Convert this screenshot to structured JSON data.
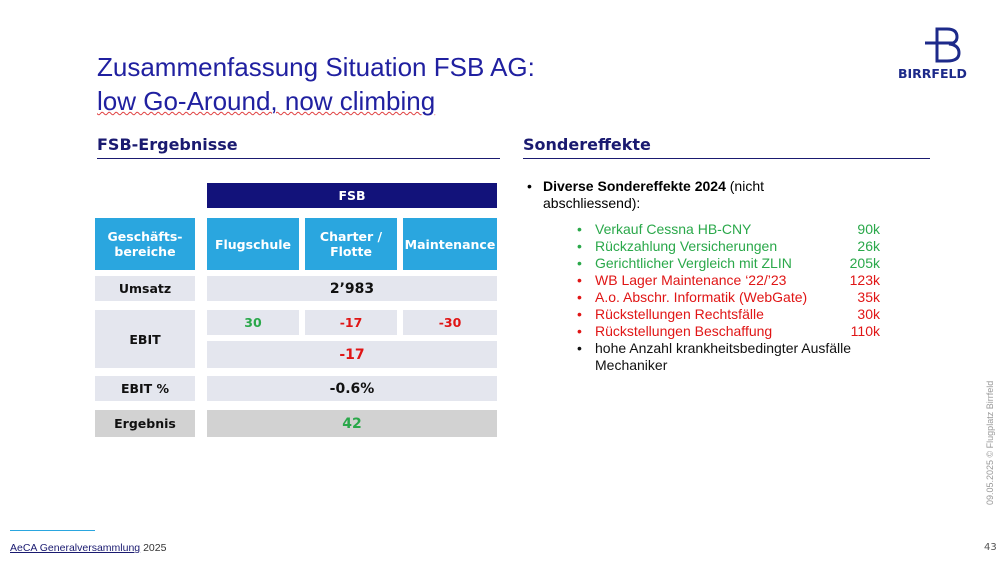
{
  "header": {
    "title_line1": "Zusammenfassung Situation FSB AG:",
    "title_line2": "low Go-Around, now climbing",
    "logo": "BIRRFELD"
  },
  "left": {
    "heading": "FSB-Ergebnisse",
    "table": {
      "group_header": "FSB",
      "corner": "Geschäfts-bereiche",
      "columns": [
        "Flugschule",
        "Charter / Flotte",
        "Maintenance"
      ],
      "umsatz": {
        "label": "Umsatz",
        "total": "2’983"
      },
      "ebit": {
        "label": "EBIT",
        "values": [
          "30",
          "-17",
          "-30"
        ],
        "total": "-17"
      },
      "ebit_pct": {
        "label": "EBIT %",
        "total": "-0.6%"
      },
      "ergebnis": {
        "label": "Ergebnis",
        "total": "42"
      }
    }
  },
  "right": {
    "heading": "Sondereffekte",
    "intro_bold": "Diverse Sondereffekte 2024",
    "intro_rest": "(nicht abschliessend):",
    "items": [
      {
        "text": "Verkauf Cessna HB-CNY",
        "amount": "90k",
        "color": "#2aa84a"
      },
      {
        "text": "Rückzahlung Versicherungen",
        "amount": "26k",
        "color": "#2aa84a"
      },
      {
        "text": "Gerichtlicher Vergleich mit ZLIN",
        "amount": "205k",
        "color": "#2aa84a"
      },
      {
        "text": "WB Lager Maintenance ‘22/’23",
        "amount": "123k",
        "color": "#e01515"
      },
      {
        "text": "A.o. Abschr. Informatik (WebGate)",
        "amount": "35k",
        "color": "#e01515"
      },
      {
        "text": "Rückstellungen Rechtsfälle",
        "amount": "30k",
        "color": "#e01515"
      },
      {
        "text": "Rückstellungen Beschaffung",
        "amount": "110k",
        "color": "#e01515"
      }
    ],
    "last_item": "hohe Anzahl krankheitsbedingter Ausfälle Mechaniker"
  },
  "footer": {
    "link": "AeCA Generalversammlung",
    "year": "2025",
    "side_note": "09.05.2025 © Flugplatz Birrfeld",
    "page_number": "43"
  }
}
